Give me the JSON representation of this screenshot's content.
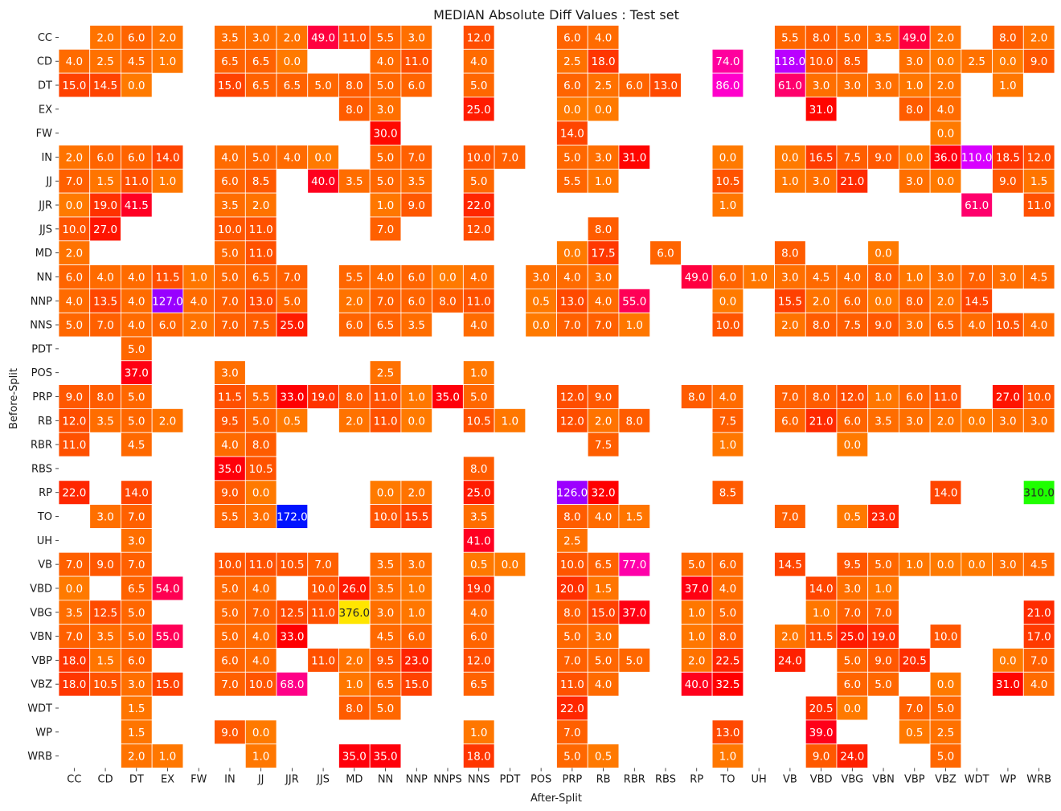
{
  "chart_data": {
    "type": "heatmap",
    "title": "MEDIAN Absolute Diff Values : Test set",
    "xlabel": "After-Split",
    "ylabel": "Before-Split",
    "x_categories": [
      "CC",
      "CD",
      "DT",
      "EX",
      "FW",
      "IN",
      "JJ",
      "JJR",
      "JJS",
      "MD",
      "NN",
      "NNP",
      "NNPS",
      "NNS",
      "PDT",
      "POS",
      "PRP",
      "RB",
      "RBR",
      "RBS",
      "RP",
      "TO",
      "UH",
      "VB",
      "VBD",
      "VBG",
      "VBN",
      "VBP",
      "VBZ",
      "WDT",
      "WP",
      "WRB"
    ],
    "y_categories": [
      "CC",
      "CD",
      "DT",
      "EX",
      "FW",
      "IN",
      "JJ",
      "JJR",
      "JJS",
      "MD",
      "NN",
      "NNP",
      "NNS",
      "PDT",
      "POS",
      "PRP",
      "RB",
      "RBR",
      "RBS",
      "RP",
      "TO",
      "UH",
      "VB",
      "VBD",
      "VBG",
      "VBN",
      "VBP",
      "VBZ",
      "WDT",
      "WP",
      "WRB"
    ],
    "colormap": "gist_rainbow_r",
    "value_range": [
      0,
      376
    ],
    "grid_lines": "white",
    "cells": {
      "CC": {
        "CD": 2.0,
        "DT": 6.0,
        "EX": 2.0,
        "IN": 3.5,
        "JJ": 3.0,
        "JJR": 2.0,
        "JJS": 49.0,
        "MD": 11.0,
        "NN": 5.5,
        "NNP": 3.0,
        "NNS": 12.0,
        "PRP": 6.0,
        "RB": 4.0,
        "VB": 5.5,
        "VBD": 8.0,
        "VBG": 5.0,
        "VBN": 3.5,
        "VBP": 49.0,
        "VBZ": 2.0,
        "WP": 8.0,
        "WRB": 2.0
      },
      "CD": {
        "CC": 4.0,
        "CD": 2.5,
        "DT": 4.5,
        "EX": 1.0,
        "IN": 6.5,
        "JJ": 6.5,
        "JJR": 0.0,
        "NN": 4.0,
        "NNP": 11.0,
        "NNS": 4.0,
        "PRP": 2.5,
        "RB": 18.0,
        "TO": 74.0,
        "VB": 118.0,
        "VBD": 10.0,
        "VBG": 8.5,
        "VBP": 3.0,
        "VBZ": 0.0,
        "WDT": 2.5,
        "WP": 0.0,
        "WRB": 9.0
      },
      "DT": {
        "CC": 15.0,
        "CD": 14.5,
        "DT": 0.0,
        "IN": 15.0,
        "JJ": 6.5,
        "JJR": 6.5,
        "JJS": 5.0,
        "MD": 8.0,
        "NN": 5.0,
        "NNP": 6.0,
        "NNS": 5.0,
        "PRP": 6.0,
        "RB": 2.5,
        "RBR": 6.0,
        "RBS": 13.0,
        "TO": 86.0,
        "VB": 61.0,
        "VBD": 3.0,
        "VBG": 3.0,
        "VBN": 3.0,
        "VBP": 1.0,
        "VBZ": 2.0,
        "WP": 1.0
      },
      "EX": {
        "MD": 8.0,
        "NN": 3.0,
        "NNS": 25.0,
        "PRP": 0.0,
        "RB": 0.0,
        "VBD": 31.0,
        "VBP": 8.0,
        "VBZ": 4.0
      },
      "FW": {
        "NN": 30.0,
        "PRP": 14.0,
        "VBZ": 0.0
      },
      "IN": {
        "CC": 2.0,
        "CD": 6.0,
        "DT": 6.0,
        "EX": 14.0,
        "IN": 4.0,
        "JJ": 5.0,
        "JJR": 4.0,
        "JJS": 0.0,
        "NN": 5.0,
        "NNP": 7.0,
        "NNS": 10.0,
        "PDT": 7.0,
        "PRP": 5.0,
        "RB": 3.0,
        "RBR": 31.0,
        "TO": 0.0,
        "VB": 0.0,
        "VBD": 16.5,
        "VBG": 7.5,
        "VBN": 9.0,
        "VBP": 0.0,
        "VBZ": 36.0,
        "WDT": 110.0,
        "WP": 18.5,
        "WRB": 12.0
      },
      "JJ": {
        "CC": 7.0,
        "CD": 1.5,
        "DT": 11.0,
        "EX": 1.0,
        "IN": 6.0,
        "JJ": 8.5,
        "JJS": 40.0,
        "MD": 3.5,
        "NN": 5.0,
        "NNP": 3.5,
        "NNS": 5.0,
        "PRP": 5.5,
        "RB": 1.0,
        "TO": 10.5,
        "VB": 1.0,
        "VBD": 3.0,
        "VBG": 21.0,
        "VBP": 3.0,
        "VBZ": 0.0,
        "WP": 9.0,
        "WRB": 1.5
      },
      "JJR": {
        "CC": 0.0,
        "CD": 19.0,
        "DT": 41.5,
        "IN": 3.5,
        "JJ": 2.0,
        "NN": 1.0,
        "NNP": 9.0,
        "NNS": 22.0,
        "TO": 1.0,
        "WDT": 61.0,
        "WRB": 11.0
      },
      "JJS": {
        "CC": 10.0,
        "CD": 27.0,
        "IN": 10.0,
        "JJ": 11.0,
        "NN": 7.0,
        "NNS": 12.0,
        "RB": 8.0
      },
      "MD": {
        "CC": 2.0,
        "IN": 5.0,
        "JJ": 11.0,
        "PRP": 0.0,
        "RB": 17.5,
        "RBS": 6.0,
        "VB": 8.0,
        "VBN": 0.0
      },
      "NN": {
        "CC": 6.0,
        "CD": 4.0,
        "DT": 4.0,
        "EX": 11.5,
        "FW": 1.0,
        "IN": 5.0,
        "JJ": 6.5,
        "JJR": 7.0,
        "MD": 5.5,
        "NN": 4.0,
        "NNP": 6.0,
        "NNPS": 0.0,
        "NNS": 4.0,
        "POS": 3.0,
        "PRP": 4.0,
        "RB": 3.0,
        "RP": 49.0,
        "TO": 6.0,
        "UH": 1.0,
        "VB": 3.0,
        "VBD": 4.5,
        "VBG": 4.0,
        "VBN": 8.0,
        "VBP": 1.0,
        "VBZ": 3.0,
        "WDT": 7.0,
        "WP": 3.0,
        "WRB": 4.5
      },
      "NNP": {
        "CC": 4.0,
        "CD": 13.5,
        "DT": 4.0,
        "EX": 127.0,
        "FW": 4.0,
        "IN": 7.0,
        "JJ": 13.0,
        "JJR": 5.0,
        "MD": 2.0,
        "NN": 7.0,
        "NNP": 6.0,
        "NNPS": 8.0,
        "NNS": 11.0,
        "POS": 0.5,
        "PRP": 13.0,
        "RB": 4.0,
        "RBR": 55.0,
        "TO": 0.0,
        "VB": 15.5,
        "VBD": 2.0,
        "VBG": 6.0,
        "VBN": 0.0,
        "VBP": 8.0,
        "VBZ": 2.0,
        "WDT": 14.5
      },
      "NNS": {
        "CC": 5.0,
        "CD": 7.0,
        "DT": 4.0,
        "EX": 6.0,
        "FW": 2.0,
        "IN": 7.0,
        "JJ": 7.5,
        "JJR": 25.0,
        "MD": 6.0,
        "NN": 6.5,
        "NNP": 3.5,
        "NNS": 4.0,
        "POS": 0.0,
        "PRP": 7.0,
        "RB": 7.0,
        "RBR": 1.0,
        "TO": 10.0,
        "VB": 2.0,
        "VBD": 8.0,
        "VBG": 7.5,
        "VBN": 9.0,
        "VBP": 3.0,
        "VBZ": 6.5,
        "WDT": 4.0,
        "WP": 10.5,
        "WRB": 4.0
      },
      "PDT": {
        "DT": 5.0
      },
      "POS": {
        "DT": 37.0,
        "IN": 3.0,
        "NN": 2.5,
        "NNS": 1.0
      },
      "PRP": {
        "CC": 9.0,
        "CD": 8.0,
        "DT": 5.0,
        "IN": 11.5,
        "JJ": 5.5,
        "JJR": 33.0,
        "JJS": 19.0,
        "MD": 8.0,
        "NN": 11.0,
        "NNP": 1.0,
        "NNPS": 35.0,
        "NNS": 5.0,
        "PRP": 12.0,
        "RB": 9.0,
        "RP": 8.0,
        "TO": 4.0,
        "VB": 7.0,
        "VBD": 8.0,
        "VBG": 12.0,
        "VBN": 1.0,
        "VBP": 6.0,
        "VBZ": 11.0,
        "WP": 27.0,
        "WRB": 10.0
      },
      "RB": {
        "CC": 12.0,
        "CD": 3.5,
        "DT": 5.0,
        "EX": 2.0,
        "IN": 9.5,
        "JJ": 5.0,
        "JJR": 0.5,
        "MD": 2.0,
        "NN": 11.0,
        "NNP": 0.0,
        "NNS": 10.5,
        "PDT": 1.0,
        "PRP": 12.0,
        "RB": 2.0,
        "RBR": 8.0,
        "TO": 7.5,
        "VB": 6.0,
        "VBD": 21.0,
        "VBG": 6.0,
        "VBN": 3.5,
        "VBP": 3.0,
        "VBZ": 2.0,
        "WDT": 0.0,
        "WP": 3.0,
        "WRB": 3.0
      },
      "RBR": {
        "CC": 11.0,
        "DT": 4.5,
        "IN": 4.0,
        "JJ": 8.0,
        "RB": 7.5,
        "TO": 1.0,
        "VBG": 0.0
      },
      "RBS": {
        "IN": 35.0,
        "JJ": 10.5,
        "NNS": 8.0
      },
      "RP": {
        "CC": 22.0,
        "DT": 14.0,
        "IN": 9.0,
        "JJ": 0.0,
        "NN": 0.0,
        "NNP": 2.0,
        "NNS": 25.0,
        "PRP": 126.0,
        "RB": 32.0,
        "TO": 8.5,
        "VBZ": 14.0,
        "WRB": 310.0
      },
      "TO": {
        "CD": 3.0,
        "DT": 7.0,
        "IN": 5.5,
        "JJ": 3.0,
        "JJR": 172.0,
        "NN": 10.0,
        "NNP": 15.5,
        "NNS": 3.5,
        "PRP": 8.0,
        "RB": 4.0,
        "RBR": 1.5,
        "VB": 7.0,
        "VBG": 0.5,
        "VBN": 23.0
      },
      "UH": {
        "DT": 3.0,
        "NNS": 41.0,
        "PRP": 2.5
      },
      "VB": {
        "CC": 7.0,
        "CD": 9.0,
        "DT": 7.0,
        "IN": 10.0,
        "JJ": 11.0,
        "JJR": 10.5,
        "JJS": 7.0,
        "NN": 3.5,
        "NNP": 3.0,
        "NNS": 0.5,
        "PDT": 0.0,
        "PRP": 10.0,
        "RB": 6.5,
        "RBR": 77.0,
        "RP": 5.0,
        "TO": 6.0,
        "VB": 14.5,
        "VBG": 9.5,
        "VBN": 5.0,
        "VBP": 1.0,
        "VBZ": 0.0,
        "WDT": 0.0,
        "WP": 3.0,
        "WRB": 4.5
      },
      "VBD": {
        "CC": 0.0,
        "DT": 6.5,
        "EX": 54.0,
        "IN": 5.0,
        "JJ": 4.0,
        "JJS": 10.0,
        "MD": 26.0,
        "NN": 3.5,
        "NNP": 1.0,
        "NNS": 19.0,
        "PRP": 20.0,
        "RB": 1.5,
        "RP": 37.0,
        "TO": 4.0,
        "VBD": 14.0,
        "VBG": 3.0,
        "VBN": 1.0
      },
      "VBG": {
        "CC": 3.5,
        "CD": 12.5,
        "DT": 5.0,
        "IN": 5.0,
        "JJ": 7.0,
        "JJR": 12.5,
        "JJS": 11.0,
        "MD": 376.0,
        "NN": 3.0,
        "NNP": 1.0,
        "NNS": 4.0,
        "PRP": 8.0,
        "RB": 15.0,
        "RBR": 37.0,
        "RP": 1.0,
        "TO": 5.0,
        "VBD": 1.0,
        "VBG": 7.0,
        "VBN": 7.0,
        "WRB": 21.0
      },
      "VBN": {
        "CC": 7.0,
        "CD": 3.5,
        "DT": 5.0,
        "EX": 55.0,
        "IN": 5.0,
        "JJ": 4.0,
        "JJR": 33.0,
        "NN": 4.5,
        "NNP": 6.0,
        "NNS": 6.0,
        "PRP": 5.0,
        "RB": 3.0,
        "RP": 1.0,
        "TO": 8.0,
        "VB": 2.0,
        "VBD": 11.5,
        "VBG": 25.0,
        "VBN": 19.0,
        "VBZ": 10.0,
        "WRB": 17.0
      },
      "VBP": {
        "CC": 18.0,
        "CD": 1.5,
        "DT": 6.0,
        "IN": 6.0,
        "JJ": 4.0,
        "JJS": 11.0,
        "MD": 2.0,
        "NN": 9.5,
        "NNP": 23.0,
        "NNS": 12.0,
        "PRP": 7.0,
        "RB": 5.0,
        "RBR": 5.0,
        "RP": 2.0,
        "TO": 22.5,
        "VB": 24.0,
        "VBG": 5.0,
        "VBN": 9.0,
        "VBP": 20.5,
        "WP": 0.0,
        "WRB": 7.0
      },
      "VBZ": {
        "CC": 18.0,
        "CD": 10.5,
        "DT": 3.0,
        "EX": 15.0,
        "IN": 7.0,
        "JJ": 10.0,
        "JJR": 68.0,
        "MD": 1.0,
        "NN": 6.5,
        "NNP": 15.0,
        "NNS": 6.5,
        "PRP": 11.0,
        "RB": 4.0,
        "RP": 40.0,
        "TO": 32.5,
        "VBG": 6.0,
        "VBN": 5.0,
        "VBZ": 0.0,
        "WP": 31.0,
        "WRB": 4.0
      },
      "WDT": {
        "DT": 1.5,
        "MD": 8.0,
        "NN": 5.0,
        "PRP": 22.0,
        "VBD": 20.5,
        "VBG": 0.0,
        "VBP": 7.0,
        "VBZ": 5.0
      },
      "WP": {
        "DT": 1.5,
        "IN": 9.0,
        "JJ": 0.0,
        "NNS": 1.0,
        "PRP": 7.0,
        "TO": 13.0,
        "VBD": 39.0,
        "VBP": 0.5,
        "VBZ": 2.5
      },
      "WRB": {
        "DT": 2.0,
        "EX": 1.0,
        "JJ": 1.0,
        "MD": 35.0,
        "NN": 35.0,
        "NNS": 18.0,
        "PRP": 5.0,
        "RB": 0.5,
        "TO": 1.0,
        "VBD": 9.0,
        "VBG": 24.0,
        "VBZ": 5.0
      }
    }
  }
}
